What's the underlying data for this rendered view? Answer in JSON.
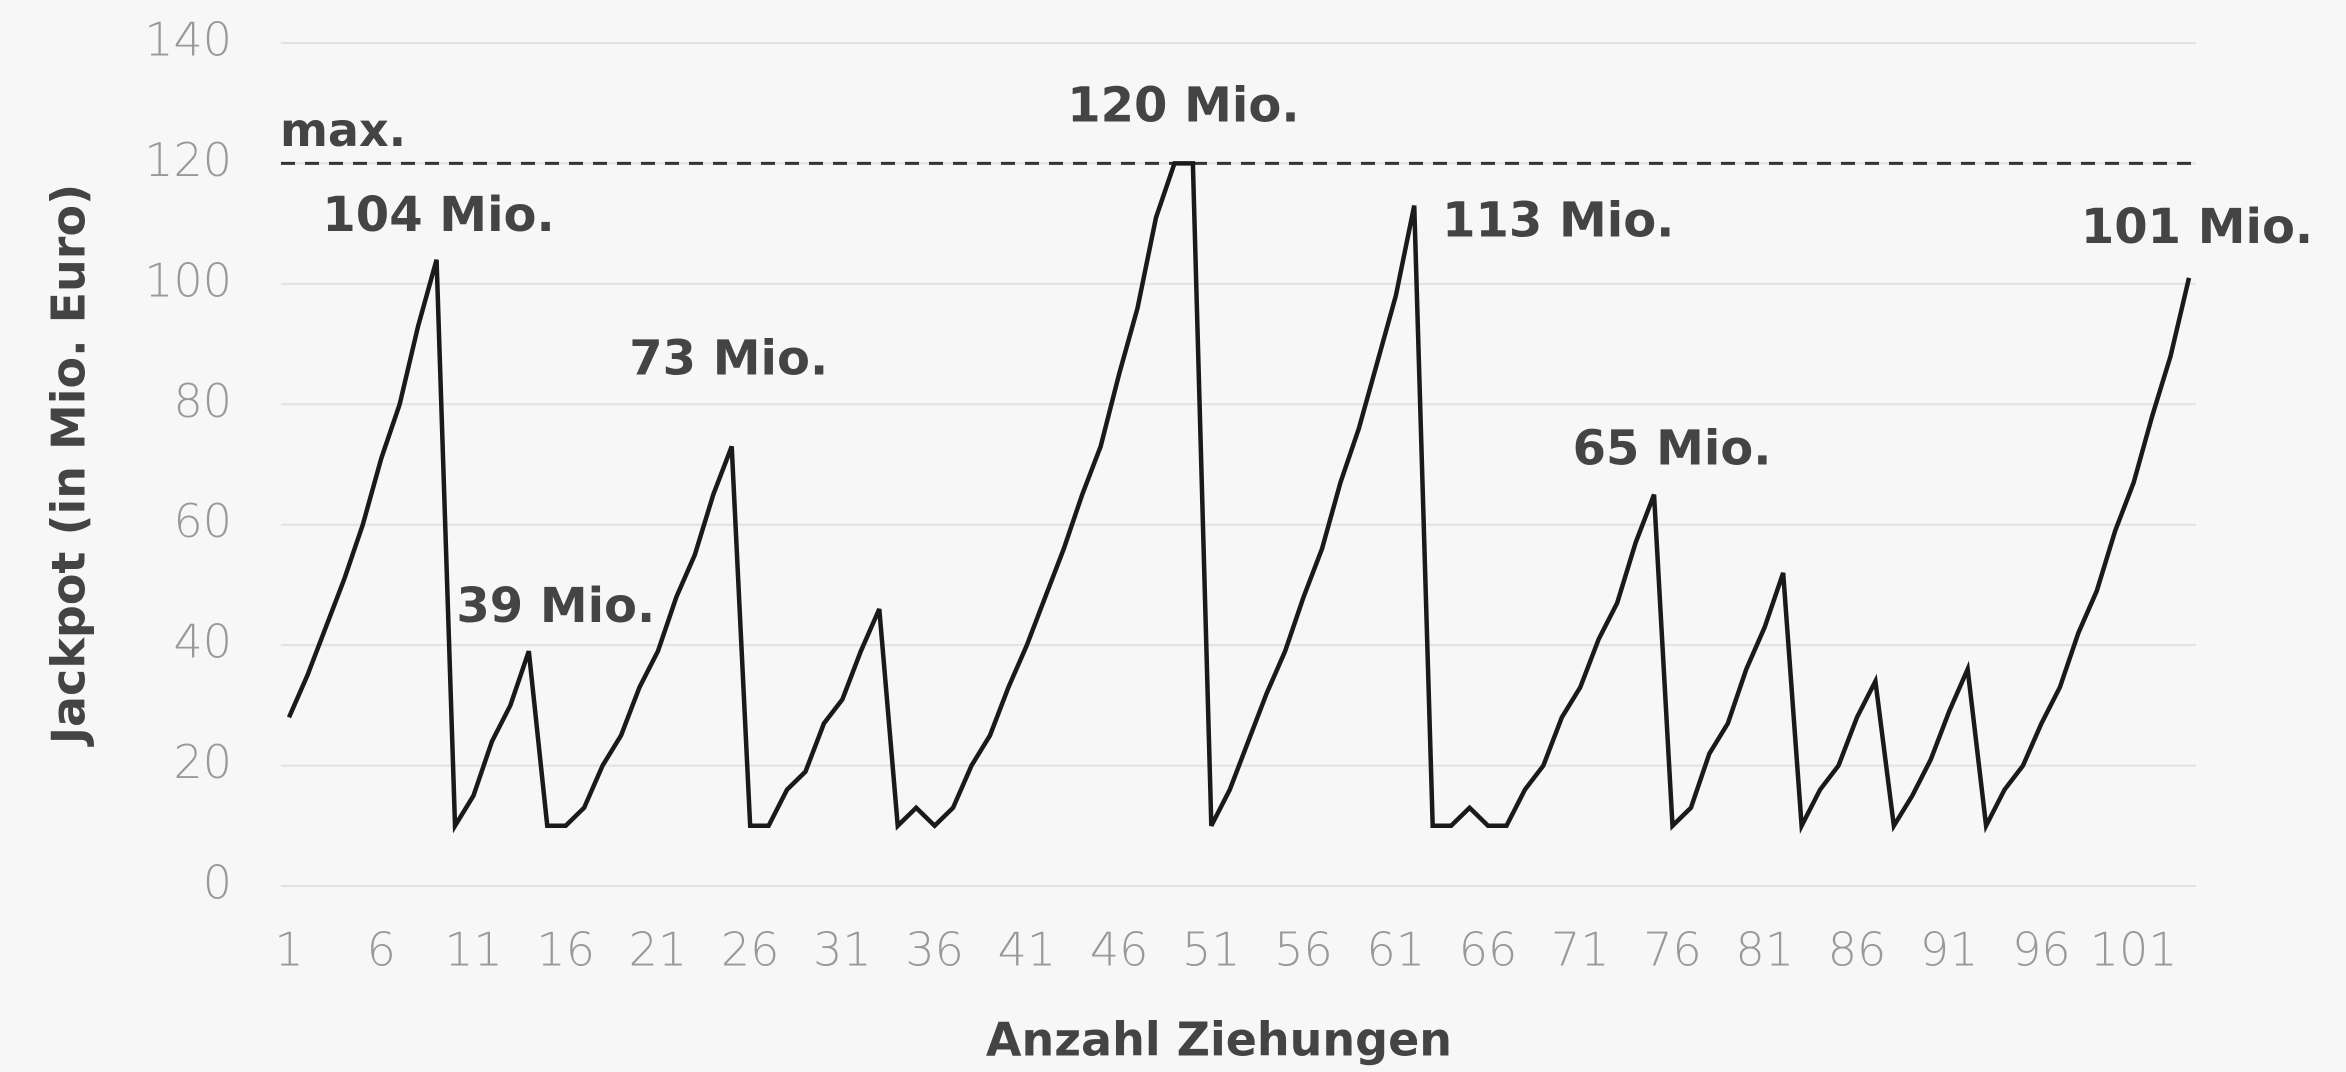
{
  "chart_data": {
    "type": "line",
    "x_label": "Anzahl Ziehungen",
    "y_label": "Jackpot (in Mio. Euro)",
    "x": [
      1,
      2,
      3,
      4,
      5,
      6,
      7,
      8,
      9,
      10,
      11,
      12,
      13,
      14,
      15,
      16,
      17,
      18,
      19,
      20,
      21,
      22,
      23,
      24,
      25,
      26,
      27,
      28,
      29,
      30,
      31,
      32,
      33,
      34,
      35,
      36,
      37,
      38,
      39,
      40,
      41,
      42,
      43,
      44,
      45,
      46,
      47,
      48,
      49,
      50,
      51,
      52,
      53,
      54,
      55,
      56,
      57,
      58,
      59,
      60,
      61,
      62,
      63,
      64,
      65,
      66,
      67,
      68,
      69,
      70,
      71,
      72,
      73,
      74,
      75,
      76,
      77,
      78,
      79,
      80,
      81,
      82,
      83,
      84,
      85,
      86,
      87,
      88,
      89,
      90,
      91,
      92,
      93,
      94,
      95,
      96,
      97,
      98,
      99,
      100,
      101,
      102,
      103,
      104
    ],
    "series": [
      {
        "color": "#1a1a1a",
        "values": [
          28,
          35,
          43,
          51,
          60,
          71,
          80,
          93,
          104,
          10,
          15,
          24,
          30,
          39,
          10,
          10,
          13,
          20,
          25,
          33,
          39,
          48,
          55,
          65,
          73,
          10,
          10,
          16,
          19,
          27,
          31,
          39,
          46,
          10,
          13,
          10,
          13,
          20,
          25,
          33,
          40,
          48,
          56,
          65,
          73,
          85,
          96,
          111,
          120,
          120,
          10,
          16,
          24,
          32,
          39,
          48,
          56,
          67,
          76,
          87,
          98,
          113,
          10,
          10,
          13,
          10,
          10,
          16,
          20,
          28,
          33,
          41,
          47,
          57,
          65,
          10,
          13,
          22,
          27,
          36,
          43,
          52,
          10,
          16,
          20,
          28,
          34,
          10,
          15,
          21,
          29,
          36,
          10,
          16,
          20,
          27,
          33,
          42,
          49,
          59,
          67,
          78,
          88,
          101
        ]
      }
    ],
    "xlim": [
      1,
      104
    ],
    "xticks": [
      1,
      6,
      11,
      16,
      21,
      26,
      31,
      36,
      41,
      46,
      51,
      56,
      61,
      66,
      71,
      76,
      81,
      86,
      91,
      96,
      101
    ],
    "ylim": [
      0,
      140
    ],
    "yticks": [
      0,
      20,
      40,
      60,
      80,
      100,
      120,
      140
    ],
    "grid": true,
    "max_line": {
      "label": "max.",
      "value": 120
    },
    "annotations": [
      {
        "text": "104 Mio.",
        "x": 9
      },
      {
        "text": "39 Mio.",
        "x": 14
      },
      {
        "text": "73 Mio.",
        "x": 25
      },
      {
        "text": "120 Mio.",
        "x": 49
      },
      {
        "text": "113 Mio.",
        "x": 62
      },
      {
        "text": "65 Mio.",
        "x": 75
      },
      {
        "text": "101 Mio.",
        "x": 104
      }
    ]
  }
}
